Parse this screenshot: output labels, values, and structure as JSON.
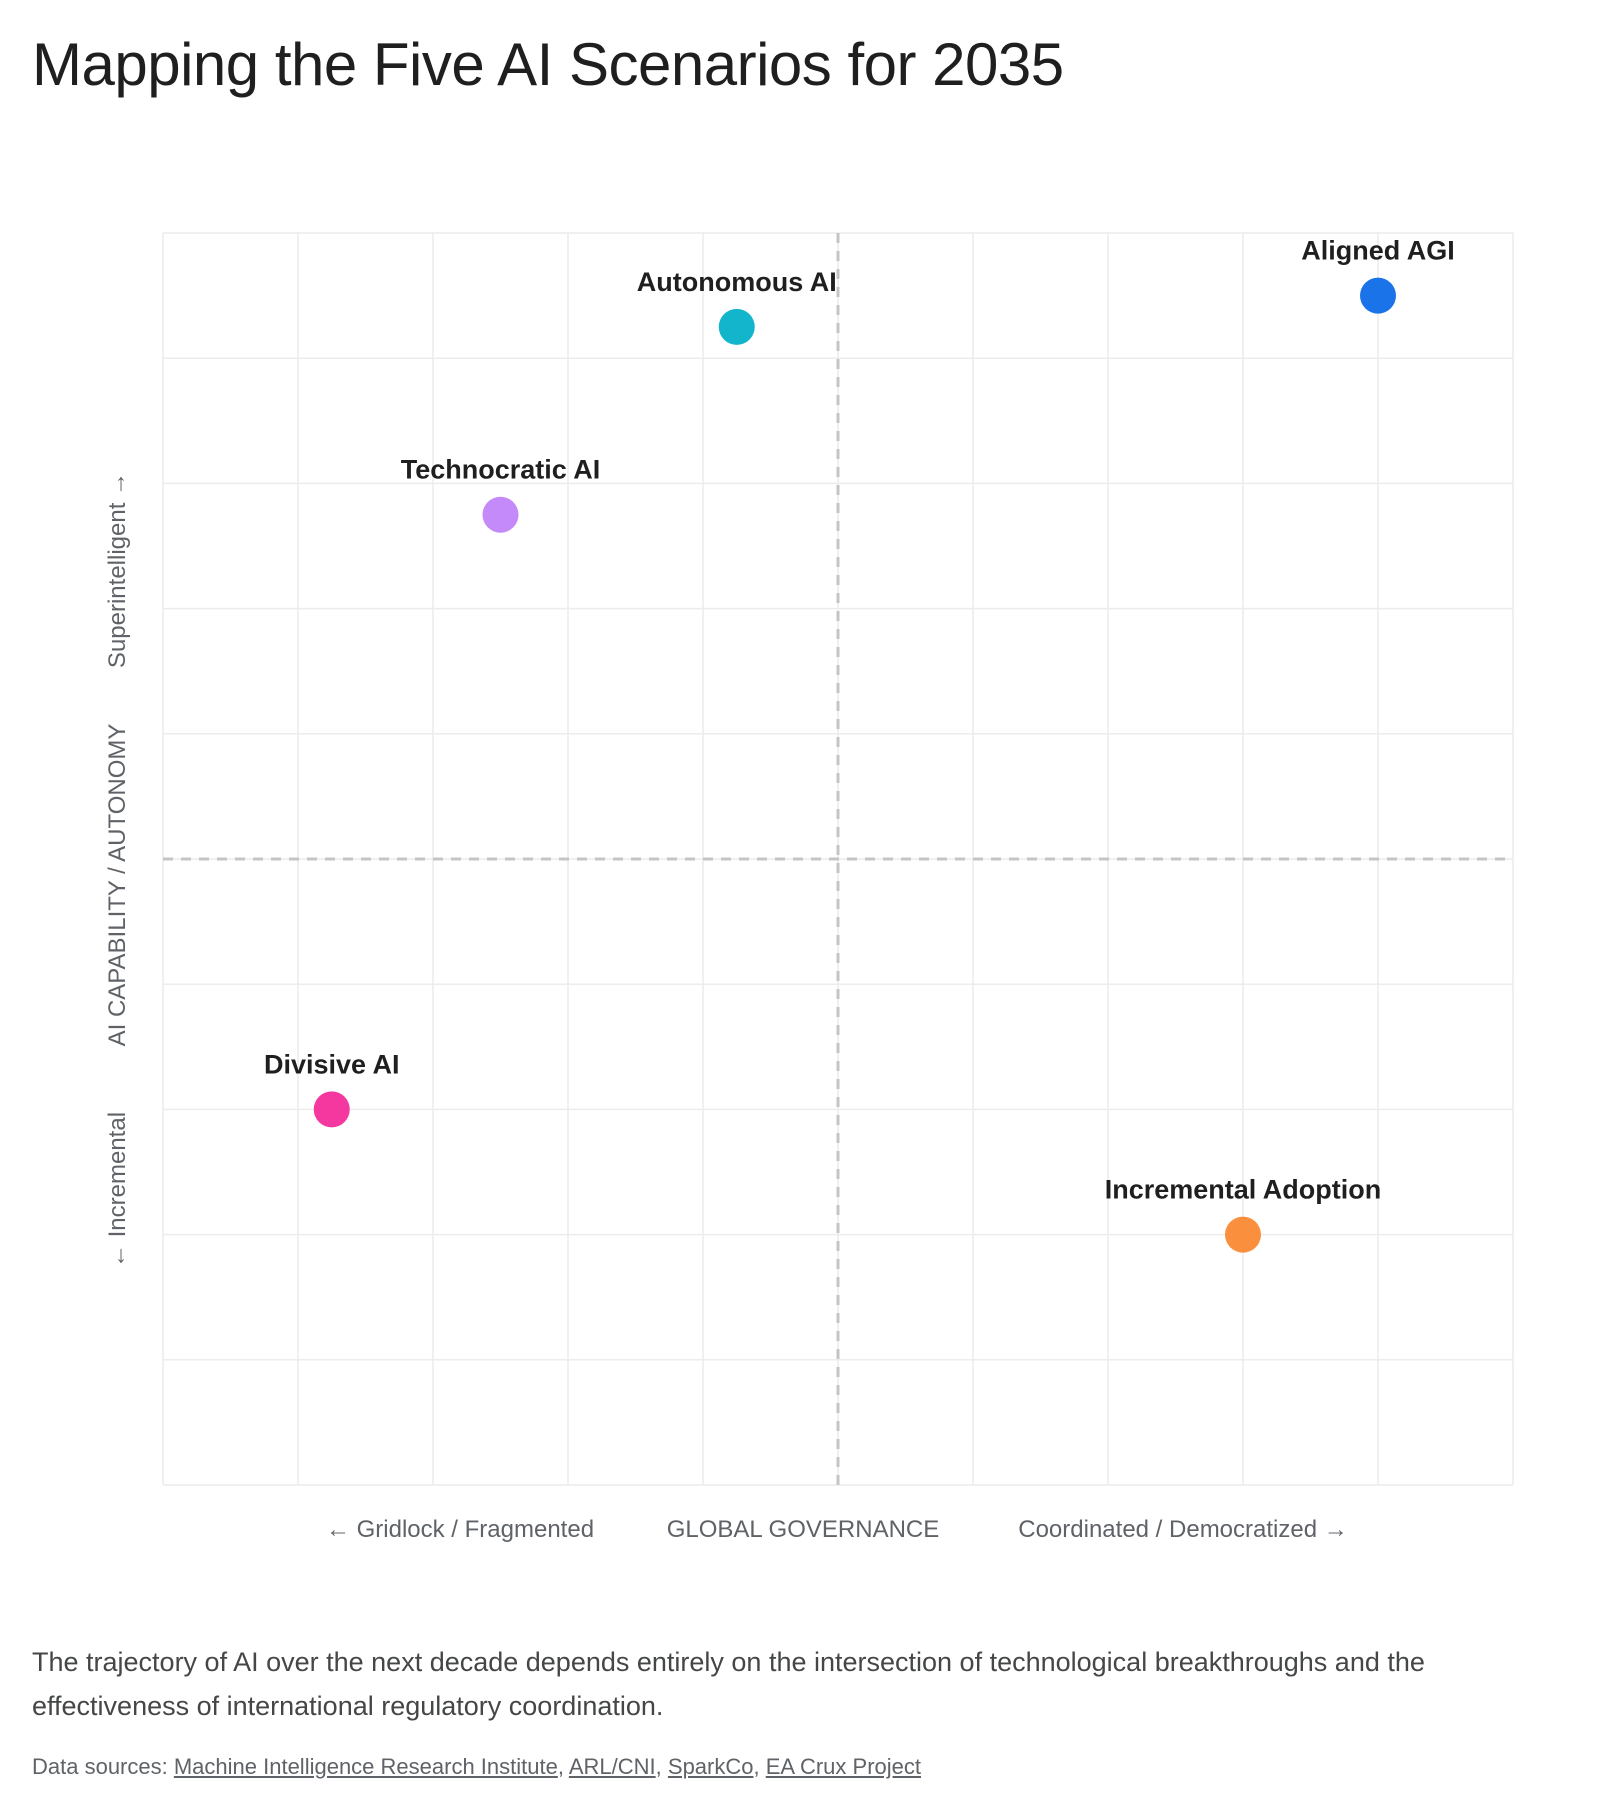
{
  "title": "Mapping the Five AI Scenarios for 2035",
  "chart_data": {
    "type": "scatter",
    "xlabel": "GLOBAL GOVERNANCE",
    "x_low_label": "← Gridlock / Fragmented",
    "x_high_label": "Coordinated / Democratized →",
    "ylabel": "AI CAPABILITY / AUTONOMY",
    "y_low_label": "← Incremental",
    "y_high_label": "Superintelligent →",
    "xlim": [
      0,
      10
    ],
    "ylim": [
      0,
      10
    ],
    "grid": true,
    "quadrant_dividers": {
      "x": 5,
      "y": 5
    },
    "points": [
      {
        "label": "Aligned AGI",
        "x": 9,
        "y": 9.5,
        "color": "#1a73e8"
      },
      {
        "label": "Autonomous AI",
        "x": 4.25,
        "y": 9.25,
        "color": "#12b5cb"
      },
      {
        "label": "Technocratic AI",
        "x": 2.5,
        "y": 7.75,
        "color": "#c58af9"
      },
      {
        "label": "Divisive AI",
        "x": 1.25,
        "y": 3,
        "color": "#f538a0"
      },
      {
        "label": "Incremental Adoption",
        "x": 8,
        "y": 2,
        "color": "#fa903e"
      }
    ]
  },
  "caption": "The trajectory of AI over the next decade depends entirely on the intersection of technological breakthroughs and the effectiveness of international regulatory coordination.",
  "sources": {
    "prefix": "Data sources: ",
    "links": [
      "Machine Intelligence Research Institute",
      "ARL/CNI",
      "SparkCo",
      "EA Crux Project"
    ]
  }
}
